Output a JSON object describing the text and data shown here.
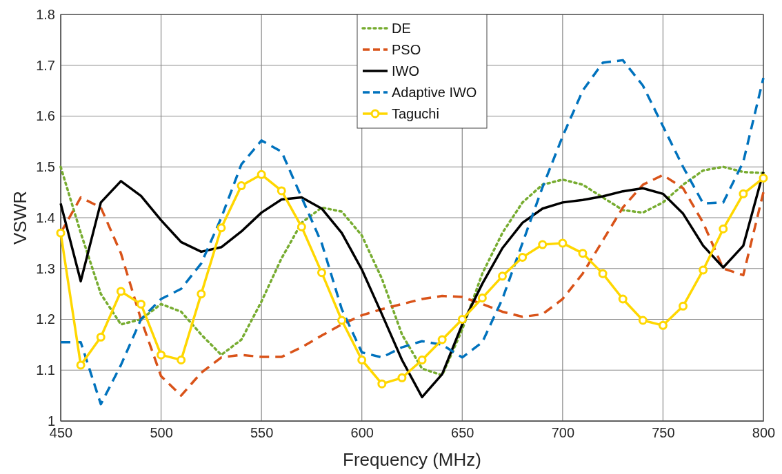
{
  "chart_data": {
    "type": "line",
    "xlabel": "Frequency (MHz)",
    "ylabel": "VSWR",
    "x": [
      450,
      460,
      470,
      480,
      490,
      500,
      510,
      520,
      530,
      540,
      550,
      560,
      570,
      580,
      590,
      600,
      610,
      620,
      630,
      640,
      650,
      660,
      670,
      680,
      690,
      700,
      710,
      720,
      730,
      740,
      750,
      760,
      770,
      780,
      790,
      800
    ],
    "xlim": [
      450,
      800
    ],
    "xticks": [
      450,
      500,
      550,
      600,
      650,
      700,
      750,
      800
    ],
    "ylim": [
      1,
      1.8
    ],
    "yticks": [
      1,
      1.1,
      1.2,
      1.3,
      1.4,
      1.5,
      1.6,
      1.7,
      1.8
    ],
    "grid": true,
    "legend": "top",
    "marker": "none",
    "series": [
      {
        "name": "DE",
        "color": "#77ac30",
        "line_style": "dotted",
        "values": [
          1.5,
          1.37,
          1.25,
          1.19,
          1.2,
          1.23,
          1.215,
          1.17,
          1.13,
          1.16,
          1.235,
          1.32,
          1.39,
          1.42,
          1.412,
          1.365,
          1.28,
          1.17,
          1.103,
          1.09,
          1.18,
          1.29,
          1.37,
          1.43,
          1.465,
          1.475,
          1.465,
          1.44,
          1.415,
          1.41,
          1.43,
          1.465,
          1.493,
          1.5,
          1.49,
          1.488
        ]
      },
      {
        "name": "PSO",
        "color": "#d95319",
        "line_style": "dashed",
        "values": [
          1.37,
          1.44,
          1.42,
          1.33,
          1.2,
          1.088,
          1.05,
          1.095,
          1.125,
          1.13,
          1.126,
          1.126,
          1.145,
          1.168,
          1.19,
          1.208,
          1.22,
          1.23,
          1.24,
          1.246,
          1.244,
          1.23,
          1.215,
          1.205,
          1.21,
          1.24,
          1.29,
          1.355,
          1.42,
          1.465,
          1.484,
          1.458,
          1.39,
          1.3,
          1.287,
          1.45
        ]
      },
      {
        "name": "IWO",
        "color": "#000000",
        "line_style": "solid",
        "values": [
          1.428,
          1.275,
          1.43,
          1.472,
          1.443,
          1.395,
          1.352,
          1.333,
          1.342,
          1.373,
          1.41,
          1.436,
          1.44,
          1.418,
          1.37,
          1.298,
          1.21,
          1.12,
          1.047,
          1.092,
          1.19,
          1.27,
          1.34,
          1.39,
          1.418,
          1.43,
          1.435,
          1.442,
          1.452,
          1.458,
          1.447,
          1.408,
          1.345,
          1.302,
          1.345,
          1.49
        ]
      },
      {
        "name": "Adaptive IWO",
        "color": "#0072bd",
        "line_style": "dashed",
        "values": [
          1.155,
          1.155,
          1.033,
          1.11,
          1.2,
          1.24,
          1.26,
          1.31,
          1.4,
          1.505,
          1.552,
          1.53,
          1.44,
          1.35,
          1.22,
          1.135,
          1.125,
          1.145,
          1.157,
          1.15,
          1.125,
          1.155,
          1.24,
          1.35,
          1.46,
          1.56,
          1.65,
          1.705,
          1.71,
          1.66,
          1.58,
          1.5,
          1.428,
          1.43,
          1.51,
          1.675
        ]
      },
      {
        "name": "Taguchi",
        "color": "#ffd700",
        "line_style": "solid",
        "marker": "circle",
        "values": [
          1.37,
          1.11,
          1.165,
          1.255,
          1.23,
          1.13,
          1.12,
          1.25,
          1.38,
          1.463,
          1.485,
          1.453,
          1.382,
          1.292,
          1.198,
          1.12,
          1.073,
          1.085,
          1.12,
          1.16,
          1.2,
          1.242,
          1.285,
          1.322,
          1.347,
          1.35,
          1.33,
          1.29,
          1.24,
          1.198,
          1.188,
          1.226,
          1.297,
          1.378,
          1.447,
          1.478
        ]
      }
    ]
  }
}
